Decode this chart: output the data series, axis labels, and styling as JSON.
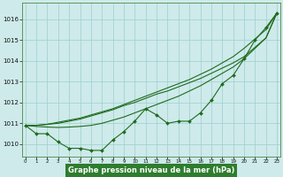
{
  "x": [
    0,
    1,
    2,
    3,
    4,
    5,
    6,
    7,
    8,
    9,
    10,
    11,
    12,
    13,
    14,
    15,
    16,
    17,
    18,
    19,
    20,
    21,
    22,
    23
  ],
  "series_marked": [
    1010.9,
    1010.5,
    1010.5,
    1010.1,
    1009.8,
    1009.8,
    1009.7,
    1009.7,
    1010.2,
    1010.6,
    1011.1,
    1011.7,
    1011.4,
    1011.0,
    1011.1,
    1011.1,
    1011.5,
    1012.1,
    1012.9,
    1013.3,
    1014.1,
    1015.0,
    1015.6,
    1016.3
  ],
  "series_line1": [
    1010.9,
    1010.9,
    1010.95,
    1011.0,
    1011.1,
    1011.2,
    1011.35,
    1011.5,
    1011.65,
    1011.85,
    1012.0,
    1012.2,
    1012.4,
    1012.55,
    1012.75,
    1012.95,
    1013.15,
    1013.4,
    1013.65,
    1013.9,
    1014.2,
    1014.65,
    1015.1,
    1016.3
  ],
  "series_line2": [
    1010.9,
    1010.9,
    1010.95,
    1011.05,
    1011.15,
    1011.25,
    1011.4,
    1011.55,
    1011.7,
    1011.9,
    1012.1,
    1012.3,
    1012.5,
    1012.7,
    1012.9,
    1013.1,
    1013.35,
    1013.6,
    1013.9,
    1014.2,
    1014.6,
    1015.05,
    1015.5,
    1016.3
  ],
  "series_line3": [
    1010.9,
    1010.85,
    1010.82,
    1010.8,
    1010.82,
    1010.85,
    1010.9,
    1011.0,
    1011.15,
    1011.3,
    1011.5,
    1011.7,
    1011.9,
    1012.1,
    1012.3,
    1012.55,
    1012.8,
    1013.1,
    1013.4,
    1013.7,
    1014.1,
    1014.6,
    1015.1,
    1016.3
  ],
  "bg_color": "#ceeaea",
  "line_color": "#1e6b1e",
  "grid_color": "#9ecece",
  "xlabel": "Graphe pression niveau de la mer (hPa)",
  "xlabel_bg": "#2e7d2e",
  "xlabel_fg": "#ffffff",
  "yticks": [
    1010,
    1011,
    1012,
    1013,
    1014,
    1015,
    1016
  ],
  "xticks": [
    0,
    1,
    2,
    3,
    4,
    5,
    6,
    7,
    8,
    9,
    10,
    11,
    12,
    13,
    14,
    15,
    16,
    17,
    18,
    19,
    20,
    21,
    22,
    23
  ],
  "ylim": [
    1009.4,
    1016.8
  ],
  "xlim": [
    -0.3,
    23.3
  ]
}
